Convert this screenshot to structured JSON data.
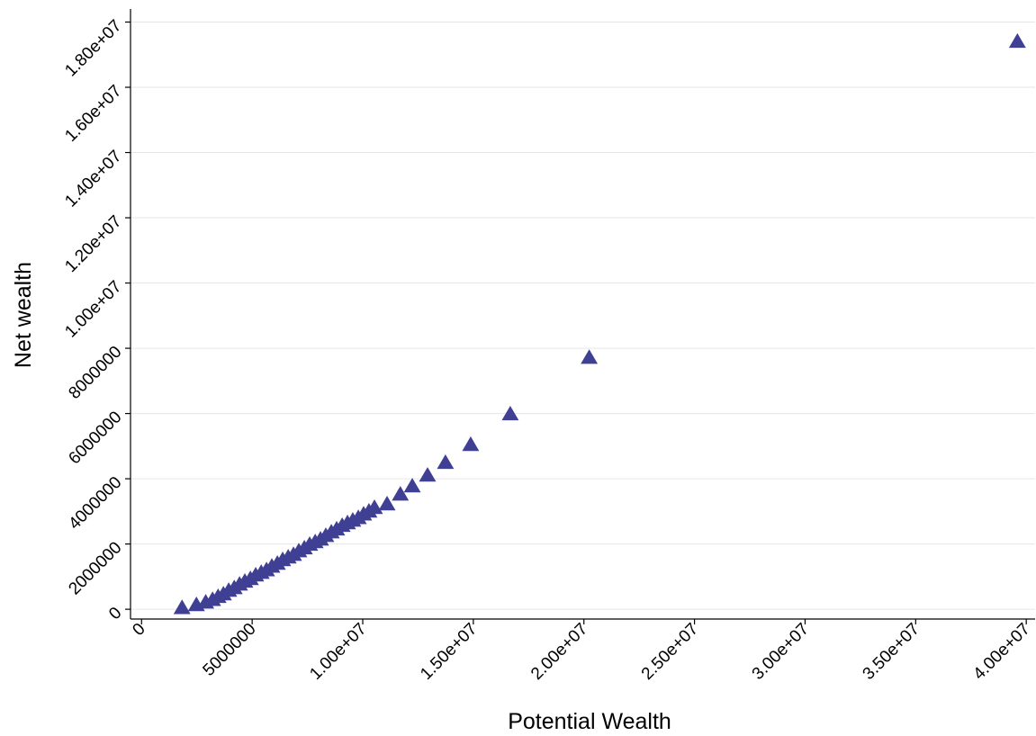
{
  "chart_data": {
    "type": "scatter",
    "x_label": "Potential Wealth",
    "y_label": "Net wealth",
    "xlim": [
      -500000,
      40400000
    ],
    "ylim": [
      -300000,
      18400000
    ],
    "xticks": [
      0,
      5000000,
      {
        "value": 10000000,
        "label": "1.00e+07"
      },
      {
        "value": 15000000,
        "label": "1.50e+07"
      },
      {
        "value": 20000000,
        "label": "2.00e+07"
      },
      {
        "value": 25000000,
        "label": "2.50e+07"
      },
      {
        "value": 30000000,
        "label": "3.00e+07"
      },
      {
        "value": 35000000,
        "label": "3.50e+07"
      },
      {
        "value": 40000000,
        "label": "4.00e+07"
      }
    ],
    "yticks": [
      0,
      2000000,
      4000000,
      6000000,
      8000000,
      {
        "value": 10000000,
        "label": "1.00e+07"
      },
      {
        "value": 12000000,
        "label": "1.20e+07"
      },
      {
        "value": 14000000,
        "label": "1.40e+07"
      },
      {
        "value": 16000000,
        "label": "1.60e+07"
      },
      {
        "value": 18000000,
        "label": "1.80e+07"
      }
    ],
    "grid": true,
    "marker": "triangle",
    "series": [
      {
        "color": "#3f3f94",
        "x": [
          1830000,
          2480000,
          2900000,
          3210000,
          3460000,
          3700000,
          3940000,
          4190000,
          4430000,
          4670000,
          4920000,
          5160000,
          5410000,
          5650000,
          5890000,
          6140000,
          6380000,
          6630000,
          6870000,
          7110000,
          7360000,
          7600000,
          7850000,
          8090000,
          8330000,
          8580000,
          8820000,
          9070000,
          9310000,
          9550000,
          9800000,
          10040000,
          10280000,
          10530000,
          11100000,
          11700000,
          12240000,
          12930000,
          13740000,
          14880000,
          16670000,
          20240000,
          39600000
        ],
        "values": [
          50000,
          140000,
          220000,
          300000,
          390000,
          470000,
          580000,
          660000,
          770000,
          860000,
          940000,
          1050000,
          1130000,
          1210000,
          1320000,
          1410000,
          1520000,
          1600000,
          1680000,
          1790000,
          1880000,
          1990000,
          2070000,
          2150000,
          2260000,
          2370000,
          2460000,
          2570000,
          2650000,
          2730000,
          2810000,
          2920000,
          3010000,
          3120000,
          3230000,
          3530000,
          3780000,
          4110000,
          4500000,
          5050000,
          5990000,
          7720000,
          17410000
        ]
      }
    ]
  }
}
